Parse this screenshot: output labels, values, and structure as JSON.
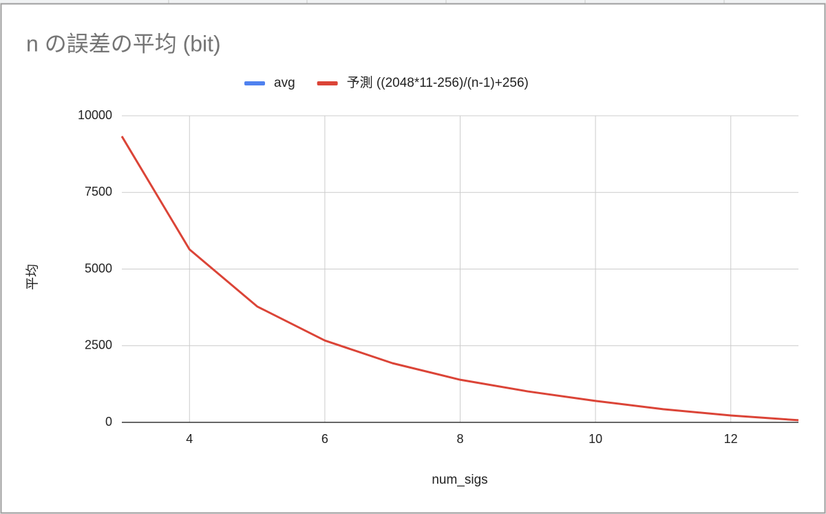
{
  "chart_data": {
    "type": "line",
    "title": "n の誤差の平均 (bit)",
    "x_label": "num_sigs",
    "y_label": "平均",
    "x": [
      3,
      4,
      5,
      6,
      7,
      8,
      9,
      10,
      11,
      12,
      13
    ],
    "series": [
      {
        "name": "avg",
        "color": "#4f81ef",
        "values": [
          null,
          null,
          null,
          null,
          null,
          null,
          null,
          null,
          null,
          null,
          null
        ]
      },
      {
        "name": "予測 ((2048*11-256)/(n-1)+256)",
        "color": "#db4437",
        "values": [
          9330,
          5640,
          3780,
          2670,
          1930,
          1390,
          1010,
          700,
          430,
          225,
          70
        ]
      }
    ],
    "xlim": [
      3,
      13
    ],
    "xticks": [
      4,
      6,
      8,
      10,
      12
    ],
    "ylim": [
      0,
      10000
    ],
    "yticks": [
      0,
      2500,
      5000,
      7500,
      10000
    ],
    "grid": true,
    "legend": "top"
  }
}
